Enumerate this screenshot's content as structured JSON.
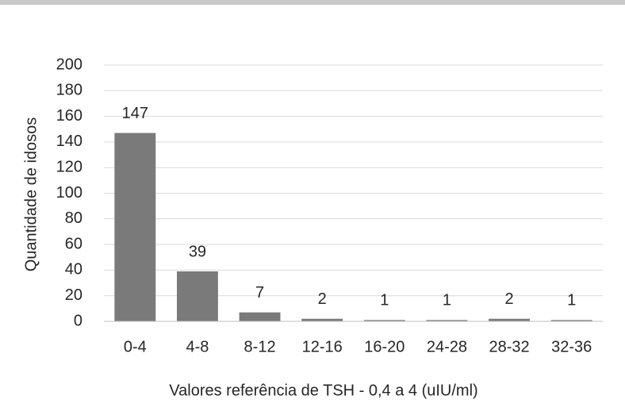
{
  "chart_data": {
    "type": "bar",
    "x_label": "Valores referência de TSH - 0,4 a 4 (uIU/ml)",
    "y_label": "Quantidade de idosos",
    "categories": [
      "0-4",
      "4-8",
      "8-12",
      "12-16",
      "16-20",
      "24-28",
      "28-32",
      "32-36"
    ],
    "values": [
      147,
      39,
      7,
      2,
      1,
      1,
      2,
      1
    ],
    "color": "#7a7a7a",
    "ylim": [
      0,
      200
    ],
    "yticks": [
      0,
      20,
      40,
      60,
      80,
      100,
      120,
      140,
      160,
      180,
      200
    ],
    "grid": true
  }
}
